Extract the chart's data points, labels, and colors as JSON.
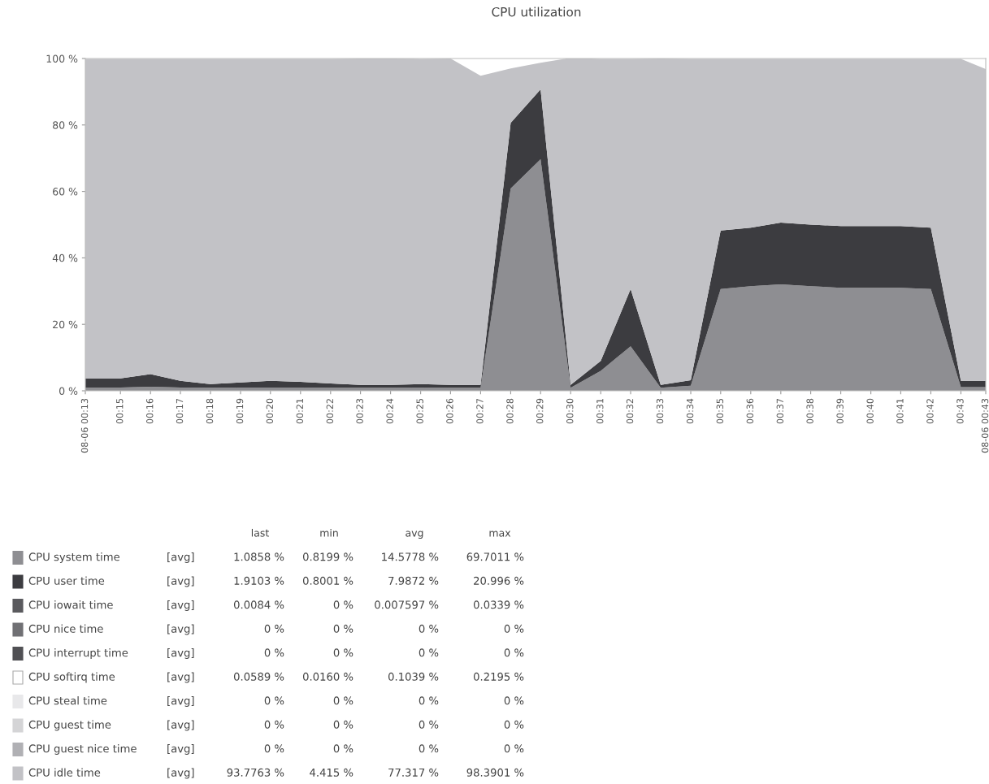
{
  "chart_data": {
    "type": "area",
    "stacked": true,
    "title": "CPU utilization",
    "x": [
      0.2305,
      0.2333,
      0.25,
      0.2667,
      0.2833,
      0.3,
      0.3167,
      0.3333,
      0.35,
      0.3667,
      0.3833,
      0.4,
      0.4167,
      0.4333,
      0.45,
      0.4667,
      0.4833,
      0.5,
      0.5167,
      0.5333,
      0.55,
      0.5667,
      0.5833,
      0.6,
      0.6167,
      0.6333,
      0.65,
      0.6667,
      0.6833,
      0.7,
      0.7167,
      0.7305
    ],
    "xlim": [
      0.2305,
      0.7305
    ],
    "xticks": [
      {
        "value": 0.2305,
        "label": "08-06 00:13"
      },
      {
        "value": 0.25,
        "label": "00:15"
      },
      {
        "value": 0.2667,
        "label": "00:16"
      },
      {
        "value": 0.2833,
        "label": "00:17"
      },
      {
        "value": 0.3,
        "label": "00:18"
      },
      {
        "value": 0.3167,
        "label": "00:19"
      },
      {
        "value": 0.3333,
        "label": "00:20"
      },
      {
        "value": 0.35,
        "label": "00:21"
      },
      {
        "value": 0.3667,
        "label": "00:22"
      },
      {
        "value": 0.3833,
        "label": "00:23"
      },
      {
        "value": 0.4,
        "label": "00:24"
      },
      {
        "value": 0.4167,
        "label": "00:25"
      },
      {
        "value": 0.4333,
        "label": "00:26"
      },
      {
        "value": 0.45,
        "label": "00:27"
      },
      {
        "value": 0.4667,
        "label": "00:28"
      },
      {
        "value": 0.4833,
        "label": "00:29"
      },
      {
        "value": 0.5,
        "label": "00:30"
      },
      {
        "value": 0.5167,
        "label": "00:31"
      },
      {
        "value": 0.5333,
        "label": "00:32"
      },
      {
        "value": 0.55,
        "label": "00:33"
      },
      {
        "value": 0.5667,
        "label": "00:34"
      },
      {
        "value": 0.5833,
        "label": "00:35"
      },
      {
        "value": 0.6,
        "label": "00:36"
      },
      {
        "value": 0.6167,
        "label": "00:37"
      },
      {
        "value": 0.6333,
        "label": "00:38"
      },
      {
        "value": 0.65,
        "label": "00:39"
      },
      {
        "value": 0.6667,
        "label": "00:40"
      },
      {
        "value": 0.6833,
        "label": "00:41"
      },
      {
        "value": 0.7,
        "label": "00:42"
      },
      {
        "value": 0.7167,
        "label": "00:43"
      },
      {
        "value": 0.7305,
        "label": "08-06 00:43"
      }
    ],
    "ylim": [
      0,
      100
    ],
    "yticks": [
      {
        "value": 0,
        "label": "0 %"
      },
      {
        "value": 20,
        "label": "20 %"
      },
      {
        "value": 40,
        "label": "40 %"
      },
      {
        "value": 60,
        "label": "60 %"
      },
      {
        "value": 80,
        "label": "80 %"
      },
      {
        "value": 100,
        "label": "100 %"
      }
    ],
    "legend": "bottom",
    "series": [
      {
        "name": "CPU system time",
        "color": "#8e8e92",
        "values": [
          1,
          1,
          1,
          1.2,
          1,
          0.9,
          1,
          1,
          1,
          0.9,
          0.9,
          0.9,
          1,
          0.9,
          0.9,
          60.9,
          69.7,
          0.9,
          6,
          13.4,
          0.9,
          1.5,
          30.6,
          31.5,
          32,
          31.5,
          31,
          31,
          31,
          30.6,
          1.1,
          1.1
        ]
      },
      {
        "name": "CPU user time",
        "color": "#3c3c40",
        "values": [
          2.7,
          2.7,
          2.7,
          3.8,
          2,
          1.1,
          1.5,
          2,
          1.7,
          1.3,
          0.9,
          0.9,
          1,
          0.9,
          0.9,
          19.7,
          21,
          0.9,
          3,
          17.2,
          0.9,
          1.7,
          17.6,
          17.6,
          18.6,
          18.5,
          18.6,
          18.6,
          18.6,
          18.5,
          1.9,
          1.9
        ]
      },
      {
        "name": "CPU iowait time",
        "color": "#5a5a5e",
        "values": [
          null,
          null,
          null,
          null,
          null,
          null,
          null,
          null,
          null,
          null,
          null,
          null,
          null,
          null,
          null,
          null,
          null,
          null,
          null,
          null,
          null,
          null,
          null,
          null,
          null,
          null,
          null,
          null,
          null,
          null,
          null,
          null
        ]
      },
      {
        "name": "CPU nice time",
        "color": "#707074",
        "values": [
          null,
          null,
          null,
          null,
          null,
          null,
          null,
          null,
          null,
          null,
          null,
          null,
          null,
          null,
          null,
          null,
          null,
          null,
          null,
          null,
          null,
          null,
          null,
          null,
          null,
          null,
          null,
          null,
          null,
          null,
          null,
          null
        ]
      },
      {
        "name": "CPU interrupt time",
        "color": "#505054",
        "values": [
          null,
          null,
          null,
          null,
          null,
          null,
          null,
          null,
          null,
          null,
          null,
          null,
          null,
          null,
          null,
          null,
          null,
          null,
          null,
          null,
          null,
          null,
          null,
          null,
          null,
          null,
          null,
          null,
          null,
          null,
          null,
          null
        ]
      },
      {
        "name": "CPU softirq time",
        "color": "#ffffff",
        "values": [
          null,
          null,
          null,
          null,
          null,
          null,
          null,
          null,
          null,
          null,
          null,
          null,
          null,
          null,
          null,
          null,
          null,
          null,
          null,
          null,
          null,
          null,
          null,
          null,
          null,
          null,
          null,
          null,
          null,
          null,
          null,
          null
        ]
      },
      {
        "name": "CPU steal time",
        "color": "#e8e8ea",
        "values": [
          null,
          null,
          null,
          null,
          null,
          null,
          null,
          null,
          null,
          null,
          null,
          null,
          null,
          null,
          null,
          null,
          null,
          null,
          null,
          null,
          null,
          null,
          null,
          null,
          null,
          null,
          null,
          null,
          null,
          null,
          null,
          null
        ]
      },
      {
        "name": "CPU guest time",
        "color": "#d4d4d6",
        "values": [
          null,
          null,
          null,
          null,
          null,
          null,
          null,
          null,
          null,
          null,
          null,
          null,
          null,
          null,
          null,
          null,
          null,
          null,
          null,
          null,
          null,
          null,
          null,
          null,
          null,
          null,
          null,
          null,
          null,
          null,
          null,
          null
        ]
      },
      {
        "name": "CPU guest nice time",
        "color": "#b0b0b4",
        "values": [
          null,
          null,
          null,
          null,
          null,
          null,
          null,
          null,
          null,
          null,
          null,
          null,
          null,
          null,
          null,
          null,
          null,
          null,
          null,
          null,
          null,
          null,
          null,
          null,
          null,
          null,
          null,
          null,
          null,
          null,
          null,
          null
        ]
      },
      {
        "name": "CPU idle time",
        "color": "#c2c2c6",
        "values": [
          96.2,
          96.2,
          96.2,
          94.9,
          96.9,
          97.9,
          97.4,
          96.9,
          97.2,
          97.7,
          98.2,
          98.2,
          97.9,
          98.2,
          93,
          16.4,
          8,
          98.4,
          90.9,
          69.3,
          98.2,
          96.7,
          51.7,
          50.8,
          49.3,
          49.9,
          50.3,
          50.3,
          50.3,
          50.8,
          96.9,
          93.8
        ]
      }
    ],
    "annotations": [
      "last",
      "min",
      "avg",
      "max",
      "[avg]",
      "1.0858 %",
      "0.8199 %",
      "14.5778 %",
      "69.7011 %",
      "[avg]",
      "1.9103 %",
      "0.8001 %",
      "7.9872 %",
      "20.996 %",
      "[avg]",
      "0.0084 %",
      "0 %",
      "0.007597 %",
      "0.0339 %",
      "[avg]",
      "0 %",
      "0 %",
      "0 %",
      "0 %",
      "[avg]",
      "0 %",
      "0 %",
      "0 %",
      "0 %",
      "[avg]",
      "0.0589 %",
      "0.0160 %",
      "0.1039 %",
      "0.2195 %",
      "[avg]",
      "0 %",
      "0 %",
      "0 %",
      "0 %",
      "[avg]",
      "0 %",
      "0 %",
      "0 %",
      "0 %",
      "[avg]",
      "0 %",
      "0 %",
      "0 %",
      "0 %",
      "[avg]",
      "93.7763 %",
      "4.415 %",
      "77.317 %",
      "98.3901 %"
    ]
  }
}
